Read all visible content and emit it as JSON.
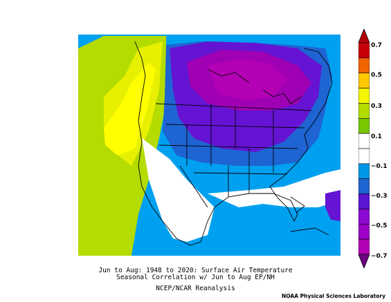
{
  "title": {
    "line1": "Jun to Aug: 1948 to 2020: Surface Air Temperature",
    "line2": "Seasonal Correlation w/ Jun to Aug EP/NH",
    "line3": "NCEP/NCAR Reanalysis"
  },
  "credit": "NOAA Physical Sciences Laboratory",
  "colorbar": {
    "labels": [
      "0.7",
      "0.5",
      "0.3",
      "0.1",
      "−0.1",
      "−0.3",
      "−0.5",
      "−0.7"
    ],
    "colors": [
      "#c8000a",
      "#f06400",
      "#ffc800",
      "#f5f500",
      "#b4dc00",
      "#78c800",
      "#ffffff",
      "#ffffff",
      "#0096e6",
      "#1e64d2",
      "#5a14d2",
      "#8c0ad2",
      "#9c00c8",
      "#b400b4"
    ]
  },
  "map": {
    "region": "North America",
    "palette": {
      "magenta": "#a000b4",
      "purple": "#6414d2",
      "blue": "#1464d2",
      "cyan": "#00a0f0",
      "lightgreen": "#96d200",
      "yellowgreen": "#c8e600",
      "yellow": "#ffff00"
    }
  }
}
